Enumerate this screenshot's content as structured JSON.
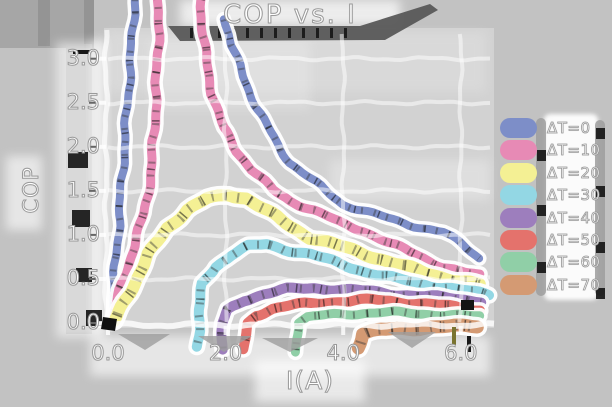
{
  "title": "COP vs. I",
  "axes": {
    "xlabel": "I(A)",
    "ylabel": "COP",
    "x_ticks": [
      {
        "label": "0.0",
        "value": 0
      },
      {
        "label": "2.0",
        "value": 2
      },
      {
        "label": "4.0",
        "value": 4
      },
      {
        "label": "6.0",
        "value": 6
      }
    ],
    "y_ticks": [
      {
        "label": "0.0",
        "value": 0
      },
      {
        "label": "0.5",
        "value": 0.5
      },
      {
        "label": "1.0",
        "value": 1
      },
      {
        "label": "1.5",
        "value": 1.5
      },
      {
        "label": "2.0",
        "value": 2
      },
      {
        "label": "2.5",
        "value": 2.5
      },
      {
        "label": "3.0",
        "value": 3
      }
    ],
    "xlim": [
      0,
      6.55
    ],
    "ylim": [
      -0.2,
      3.35
    ],
    "grid": true
  },
  "legend": {
    "position": "right",
    "items": [
      {
        "label": "ΔT=0",
        "color": "#7d8ec8"
      },
      {
        "label": "ΔT=10",
        "color": "#e78ab5"
      },
      {
        "label": "ΔT=20",
        "color": "#f4f094"
      },
      {
        "label": "ΔT=30",
        "color": "#93d7e4"
      },
      {
        "label": "ΔT=40",
        "color": "#9d7ebd"
      },
      {
        "label": "ΔT=50",
        "color": "#e4726c"
      },
      {
        "label": "ΔT=60",
        "color": "#90cfa7"
      },
      {
        "label": "ΔT=70",
        "color": "#d49a73"
      }
    ]
  },
  "chart_data": {
    "type": "line",
    "style": "xkcd-sketch",
    "xlabel": "I(A)",
    "ylabel": "COP",
    "series": [
      {
        "name": "ΔT=0",
        "color": "#7d8ec8",
        "lw": 8,
        "segments": [
          [
            [
              0.05,
              0
            ],
            [
              0.18,
              1.1
            ],
            [
              0.3,
              2.2
            ],
            [
              0.42,
              3.3
            ],
            [
              0.5,
              4.3
            ]
          ],
          [
            [
              2.0,
              3.45
            ],
            [
              2.1,
              3.15
            ],
            [
              2.3,
              2.8
            ],
            [
              2.55,
              2.42
            ],
            [
              2.85,
              2.06
            ],
            [
              3.1,
              1.82
            ],
            [
              3.45,
              1.63
            ],
            [
              4.0,
              1.35
            ],
            [
              4.5,
              1.24
            ],
            [
              4.85,
              1.17
            ],
            [
              5.3,
              1.09
            ],
            [
              5.7,
              1.03
            ],
            [
              6.05,
              0.88
            ],
            [
              6.32,
              0.74
            ]
          ]
        ]
      },
      {
        "name": "ΔT=10",
        "color": "#e78ab5",
        "lw": 9,
        "segments": [
          [
            [
              0.05,
              0
            ],
            [
              0.38,
              0.75
            ],
            [
              0.62,
              1.25
            ],
            [
              0.75,
              1.8
            ],
            [
              0.82,
              2.6
            ],
            [
              0.86,
              3.4
            ],
            [
              0.88,
              4.1
            ]
          ],
          [
            [
              1.57,
              4.1
            ],
            [
              1.6,
              3.4
            ],
            [
              1.66,
              3.0
            ],
            [
              1.78,
              2.6
            ],
            [
              1.95,
              2.22
            ],
            [
              2.2,
              1.95
            ],
            [
              2.45,
              1.74
            ],
            [
              2.8,
              1.51
            ],
            [
              3.1,
              1.39
            ],
            [
              3.5,
              1.28
            ],
            [
              4.0,
              1.12
            ],
            [
              4.35,
              1.05
            ],
            [
              4.8,
              0.9
            ],
            [
              5.2,
              0.79
            ],
            [
              5.7,
              0.64
            ],
            [
              6.05,
              0.57
            ],
            [
              6.32,
              0.54
            ]
          ]
        ]
      },
      {
        "name": "ΔT=20",
        "color": "#f4f094",
        "lw": 12,
        "segments": [
          [
            [
              0.12,
              0.02
            ],
            [
              0.4,
              0.4
            ],
            [
              0.7,
              0.78
            ],
            [
              1.0,
              1.08
            ],
            [
              1.35,
              1.28
            ],
            [
              1.7,
              1.41
            ],
            [
              2.05,
              1.46
            ],
            [
              2.35,
              1.42
            ],
            [
              2.7,
              1.27
            ],
            [
              3.1,
              1.1
            ],
            [
              3.45,
              0.97
            ],
            [
              3.9,
              0.88
            ],
            [
              4.4,
              0.78
            ],
            [
              4.9,
              0.67
            ],
            [
              5.4,
              0.57
            ],
            [
              5.9,
              0.49
            ],
            [
              6.32,
              0.43
            ]
          ]
        ]
      },
      {
        "name": "ΔT=30",
        "color": "#93d7e4",
        "lw": 10,
        "segments": [
          [
            [
              1.52,
              -0.27
            ],
            [
              1.55,
              0.15
            ],
            [
              1.62,
              0.45
            ],
            [
              1.82,
              0.64
            ],
            [
              2.1,
              0.78
            ],
            [
              2.4,
              0.87
            ],
            [
              2.7,
              0.89
            ],
            [
              3.0,
              0.84
            ],
            [
              3.45,
              0.78
            ],
            [
              3.9,
              0.68
            ],
            [
              4.4,
              0.58
            ],
            [
              4.9,
              0.5
            ],
            [
              5.4,
              0.44
            ],
            [
              5.95,
              0.38
            ],
            [
              6.48,
              0.32
            ]
          ]
        ]
      },
      {
        "name": "ΔT=40",
        "color": "#9d7ebd",
        "lw": 10,
        "segments": [
          [
            [
              1.92,
              -0.3
            ],
            [
              1.96,
              0.0
            ],
            [
              2.05,
              0.15
            ],
            [
              2.3,
              0.26
            ],
            [
              2.65,
              0.33
            ],
            [
              3.05,
              0.38
            ],
            [
              3.5,
              0.4
            ],
            [
              3.95,
              0.38
            ],
            [
              4.4,
              0.36
            ],
            [
              4.9,
              0.33
            ],
            [
              5.4,
              0.3
            ],
            [
              5.9,
              0.28
            ],
            [
              6.35,
              0.25
            ]
          ]
        ]
      },
      {
        "name": "ΔT=50",
        "color": "#e4726c",
        "lw": 10,
        "segments": [
          [
            [
              2.33,
              -0.3
            ],
            [
              2.38,
              0.0
            ],
            [
              2.5,
              0.09
            ],
            [
              2.8,
              0.16
            ],
            [
              3.15,
              0.2
            ],
            [
              3.55,
              0.23
            ],
            [
              4.0,
              0.25
            ],
            [
              4.5,
              0.26
            ],
            [
              5.0,
              0.24
            ],
            [
              5.5,
              0.21
            ],
            [
              6.0,
              0.17
            ],
            [
              6.33,
              0.15
            ]
          ]
        ]
      },
      {
        "name": "ΔT=60",
        "color": "#90cfa7",
        "lw": 9,
        "segments": [
          [
            [
              3.18,
              -0.33
            ],
            [
              3.22,
              0.0
            ],
            [
              3.4,
              0.06
            ],
            [
              3.75,
              0.09
            ],
            [
              4.15,
              0.11
            ],
            [
              4.65,
              0.12
            ],
            [
              5.15,
              0.11
            ],
            [
              5.65,
              0.1
            ],
            [
              6.05,
              0.08
            ],
            [
              6.32,
              0.07
            ]
          ]
        ]
      },
      {
        "name": "ΔT=70",
        "color": "#d49a73",
        "lw": 13,
        "segments": [
          [
            [
              4.24,
              -0.28
            ],
            [
              4.33,
              -0.13
            ],
            [
              4.65,
              -0.08
            ],
            [
              5.0,
              -0.06
            ],
            [
              5.5,
              -0.05
            ],
            [
              6.0,
              -0.04
            ],
            [
              6.28,
              -0.03
            ]
          ]
        ]
      }
    ]
  }
}
